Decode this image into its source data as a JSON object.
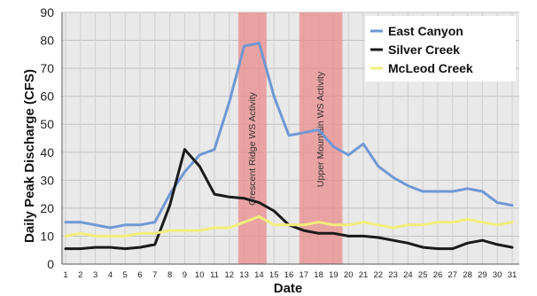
{
  "chart_data": {
    "type": "line",
    "title": "",
    "xlabel": "Date",
    "ylabel": "Daily Peak Discharge (CFS)",
    "ylim": [
      0,
      90
    ],
    "xlim": [
      1,
      31
    ],
    "yticks": [
      0,
      10,
      20,
      30,
      40,
      50,
      60,
      70,
      80,
      90
    ],
    "x": [
      1,
      2,
      3,
      4,
      5,
      6,
      7,
      8,
      9,
      10,
      11,
      12,
      13,
      14,
      15,
      16,
      17,
      18,
      19,
      20,
      21,
      22,
      23,
      24,
      25,
      26,
      27,
      28,
      29,
      30,
      31
    ],
    "grid": true,
    "legend_position": "top-right",
    "series": [
      {
        "name": "East Canyon",
        "color": "#6f97d4",
        "values": [
          15,
          15,
          14,
          13,
          14,
          14,
          15,
          25,
          33,
          39,
          41,
          58,
          78,
          79,
          60,
          46,
          47,
          48,
          42,
          39,
          43,
          35,
          31,
          28,
          26,
          26,
          26,
          27,
          26,
          22,
          21
        ]
      },
      {
        "name": "Silver Creek",
        "color": "#1a1a1a",
        "values": [
          5.5,
          5.5,
          6,
          6,
          5.5,
          6,
          7,
          21,
          41,
          35,
          25,
          24,
          23.5,
          22,
          19,
          14,
          12,
          11,
          11,
          10,
          10,
          9.5,
          8.5,
          7.5,
          6,
          5.5,
          5.5,
          7.5,
          8.5,
          7,
          6
        ]
      },
      {
        "name": "McLeod Creek",
        "color": "#f2ee7a",
        "values": [
          10,
          11,
          10,
          10,
          10,
          11,
          11,
          12,
          12,
          12,
          13,
          13,
          15,
          17,
          14,
          14,
          14,
          15,
          14,
          14,
          15,
          14,
          13,
          14,
          14,
          15,
          15,
          16,
          15,
          14,
          15
        ]
      }
    ],
    "bands": [
      {
        "label": "Crescent Ridge WS Activity",
        "from": 12.6,
        "to": 14.5,
        "color": "#e98b8b"
      },
      {
        "label": "Upper Mountain WS Activity",
        "from": 16.7,
        "to": 19.6,
        "color": "#e98b8b"
      }
    ]
  }
}
